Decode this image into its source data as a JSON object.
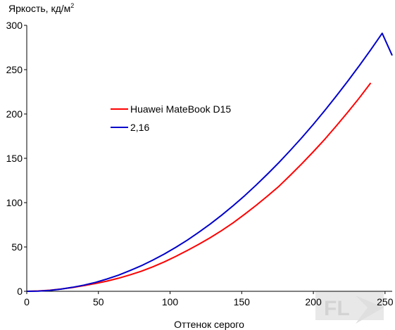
{
  "chart_data": {
    "type": "line",
    "title": "",
    "ylabel": "Яркость, кд/м",
    "ylabel_superscript": "2",
    "xlabel": "Оттенок серого",
    "xlim": [
      0,
      255
    ],
    "ylim": [
      0,
      300
    ],
    "xticks": [
      0,
      50,
      100,
      150,
      200,
      250
    ],
    "xtick_labels": [
      "0",
      "50",
      "100",
      "150",
      "200",
      "250"
    ],
    "yticks": [
      0,
      50,
      100,
      150,
      200,
      250,
      300
    ],
    "ytick_labels": [
      "0",
      "50",
      "100",
      "150",
      "200",
      "250",
      "300"
    ],
    "grid": false,
    "legend_position": "center-left",
    "series": [
      {
        "name": "Huawei MateBook D15",
        "color": "#ff0000",
        "x": [
          0,
          8,
          16,
          24,
          32,
          40,
          48,
          56,
          64,
          72,
          80,
          88,
          96,
          104,
          112,
          120,
          128,
          136,
          144,
          152,
          160,
          168,
          176,
          184,
          192,
          200,
          208,
          216,
          224,
          232,
          240
        ],
        "y": [
          0,
          0.4,
          1.2,
          2.6,
          4.3,
          6.4,
          8.8,
          11.5,
          14.8,
          18.5,
          22.7,
          27.6,
          33.2,
          39.4,
          46.0,
          52.9,
          60.4,
          68.5,
          77.2,
          86.8,
          96.8,
          107.5,
          118.5,
          131.0,
          144.0,
          157.5,
          171.5,
          186.5,
          202.0,
          218.0,
          235.0
        ]
      },
      {
        "name": "2,16",
        "color": "#0000cc",
        "x": [
          0,
          8,
          16,
          24,
          32,
          40,
          48,
          56,
          64,
          72,
          80,
          88,
          96,
          104,
          112,
          120,
          128,
          136,
          144,
          152,
          160,
          168,
          176,
          184,
          192,
          200,
          208,
          216,
          224,
          232,
          240,
          248,
          255
        ],
        "y": [
          0,
          0.2,
          1.0,
          2.5,
          4.5,
          7.0,
          10.1,
          13.9,
          18.2,
          23.3,
          28.9,
          35.2,
          42.1,
          49.6,
          57.7,
          66.5,
          75.9,
          85.9,
          96.5,
          107.8,
          119.7,
          132.2,
          145.3,
          159.1,
          173.4,
          188.4,
          204.0,
          220.2,
          237.0,
          254.4,
          272.4,
          291.0,
          266.0
        ]
      }
    ]
  },
  "watermark": {
    "text": "FL",
    "color": "#d3d3d3"
  }
}
